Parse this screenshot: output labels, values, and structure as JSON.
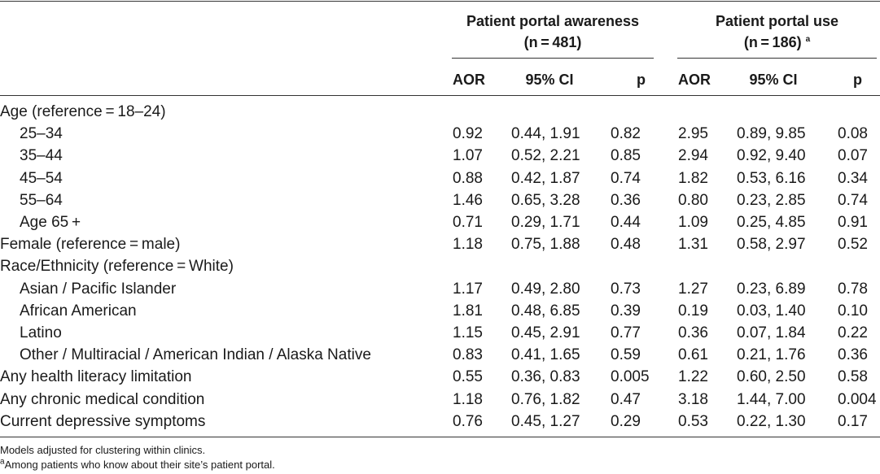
{
  "header": {
    "group1_title_line1": "Patient portal awareness",
    "group1_title_line2": "(n = 481)",
    "group2_title_line1": "Patient portal use",
    "group2_title_line2": "(n = 186)",
    "group2_sup": "a",
    "col_aor": "AOR",
    "col_ci": "95% CI",
    "col_p": "p"
  },
  "rows": [
    {
      "label": "Age (reference = 18–24)",
      "indent": false,
      "v": [
        "",
        "",
        "",
        "",
        "",
        ""
      ]
    },
    {
      "label": "25–34",
      "indent": true,
      "v": [
        "0.92",
        "0.44, 1.91",
        "0.82",
        "2.95",
        "0.89, 9.85",
        "0.08"
      ]
    },
    {
      "label": "35–44",
      "indent": true,
      "v": [
        "1.07",
        "0.52, 2.21",
        "0.85",
        "2.94",
        "0.92, 9.40",
        "0.07"
      ]
    },
    {
      "label": "45–54",
      "indent": true,
      "v": [
        "0.88",
        "0.42, 1.87",
        "0.74",
        "1.82",
        "0.53, 6.16",
        "0.34"
      ]
    },
    {
      "label": "55–64",
      "indent": true,
      "v": [
        "1.46",
        "0.65, 3.28",
        "0.36",
        "0.80",
        "0.23, 2.85",
        "0.74"
      ]
    },
    {
      "label": "Age 65 +",
      "indent": true,
      "v": [
        "0.71",
        "0.29, 1.71",
        "0.44",
        "1.09",
        "0.25, 4.85",
        "0.91"
      ]
    },
    {
      "label": "Female (reference = male)",
      "indent": false,
      "v": [
        "1.18",
        "0.75, 1.88",
        "0.48",
        "1.31",
        "0.58, 2.97",
        "0.52"
      ]
    },
    {
      "label": "Race/Ethnicity (reference = White)",
      "indent": false,
      "v": [
        "",
        "",
        "",
        "",
        "",
        ""
      ]
    },
    {
      "label": "Asian / Pacific Islander",
      "indent": true,
      "v": [
        "1.17",
        "0.49, 2.80",
        "0.73",
        "1.27",
        "0.23, 6.89",
        "0.78"
      ]
    },
    {
      "label": "African American",
      "indent": true,
      "v": [
        "1.81",
        "0.48, 6.85",
        "0.39",
        "0.19",
        "0.03, 1.40",
        "0.10"
      ]
    },
    {
      "label": "Latino",
      "indent": true,
      "v": [
        "1.15",
        "0.45, 2.91",
        "0.77",
        "0.36",
        "0.07, 1.84",
        "0.22"
      ]
    },
    {
      "label": "Other / Multiracial / American Indian / Alaska Native",
      "indent": true,
      "v": [
        "0.83",
        "0.41, 1.65",
        "0.59",
        "0.61",
        "0.21, 1.76",
        "0.36"
      ]
    },
    {
      "label": "Any health literacy limitation",
      "indent": false,
      "v": [
        "0.55",
        "0.36, 0.83",
        "0.005",
        "1.22",
        "0.60, 2.50",
        "0.58"
      ]
    },
    {
      "label": "Any chronic medical condition",
      "indent": false,
      "v": [
        "1.18",
        "0.76, 1.82",
        "0.47",
        "3.18",
        "1.44, 7.00",
        "0.004"
      ]
    },
    {
      "label": "Current depressive symptoms",
      "indent": false,
      "v": [
        "0.76",
        "0.45, 1.27",
        "0.29",
        "0.53",
        "0.22, 1.30",
        "0.17"
      ]
    }
  ],
  "footnotes": {
    "line1": "Models adjusted for clustering within clinics.",
    "line2_sup": "a",
    "line2": "Among patients who know about their site’s patient portal."
  }
}
